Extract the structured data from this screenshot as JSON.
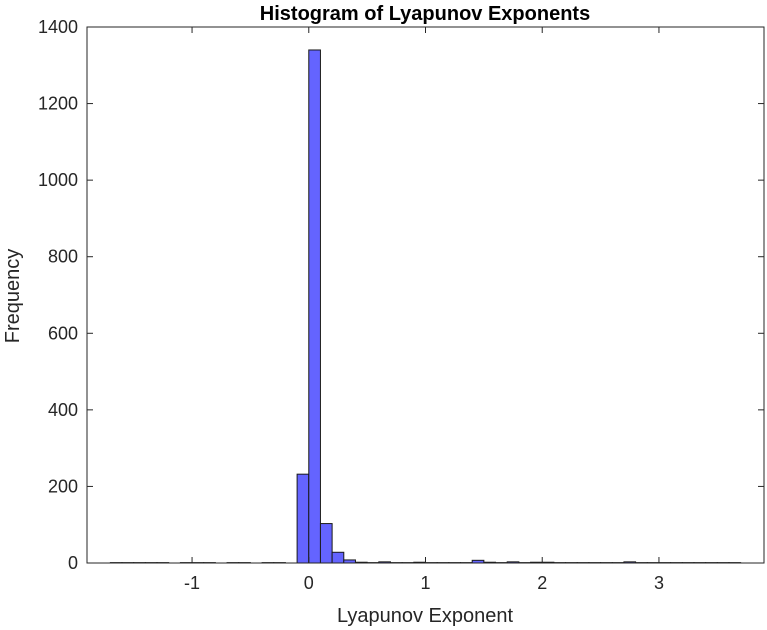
{
  "chart_data": {
    "type": "bar",
    "title": "Histogram of Lyapunov Exponents",
    "xlabel": "Lyapunov Exponent",
    "ylabel": "Frequency",
    "xlim": [
      -1.9,
      3.9
    ],
    "ylim": [
      0,
      1400
    ],
    "xticks": [
      -1,
      0,
      1,
      2,
      3
    ],
    "xtick_labels": [
      "-1",
      "0",
      "1",
      "2",
      "3"
    ],
    "yticks": [
      0,
      200,
      400,
      600,
      800,
      1000,
      1200,
      1400
    ],
    "ytick_labels": [
      "0",
      "200",
      "400",
      "600",
      "800",
      "1000",
      "1200",
      "1400"
    ],
    "bin_width": 0.1,
    "bin_starts": [
      -1.7,
      -1.6,
      -1.5,
      -1.4,
      -1.3,
      -1.2,
      -1.1,
      -1.0,
      -0.9,
      -0.8,
      -0.7,
      -0.6,
      -0.5,
      -0.4,
      -0.3,
      -0.2,
      -0.1,
      0.0,
      0.1,
      0.2,
      0.3,
      0.4,
      0.5,
      0.6,
      0.7,
      0.8,
      0.9,
      1.0,
      1.1,
      1.2,
      1.3,
      1.4,
      1.5,
      1.6,
      1.7,
      1.8,
      1.9,
      2.0,
      2.1,
      2.2,
      2.3,
      2.4,
      2.5,
      2.6,
      2.7,
      2.8,
      2.9,
      3.0,
      3.1,
      3.2,
      3.3,
      3.4,
      3.5,
      3.6
    ],
    "values": [
      1,
      1,
      1,
      1,
      1,
      0,
      1,
      1,
      1,
      0,
      1,
      1,
      0,
      1,
      1,
      0,
      232,
      1340,
      103,
      28,
      8,
      2,
      1,
      3,
      1,
      1,
      2,
      1,
      1,
      1,
      1,
      7,
      2,
      1,
      3,
      1,
      2,
      2,
      1,
      1,
      1,
      1,
      1,
      1,
      3,
      1,
      1,
      1,
      1,
      1,
      1,
      1,
      1,
      1
    ],
    "grid": false,
    "colors": {
      "bar_fill": "#6464ff",
      "bar_edge": "#1a1a1a",
      "axis": "#262626"
    }
  }
}
